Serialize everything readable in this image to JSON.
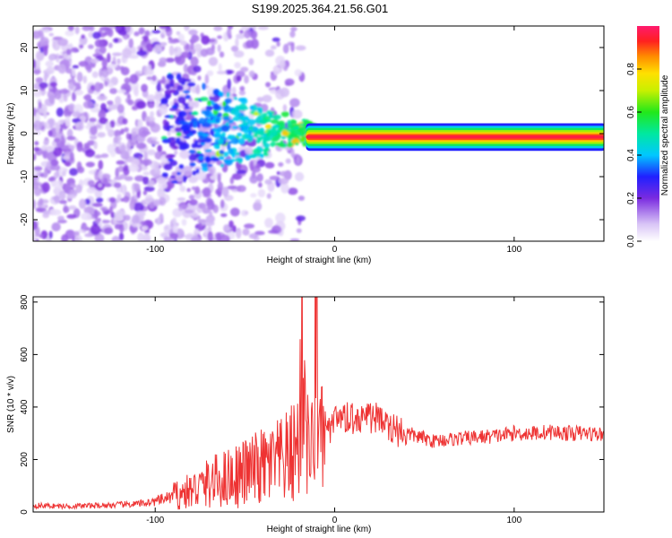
{
  "chart_data": [
    {
      "type": "heatmap",
      "title": "S199.2025.364.21.56.G01",
      "xlabel": "Height of straight line (km)",
      "ylabel": "Frequency (Hz)",
      "xlim": [
        -168,
        150
      ],
      "ylim": [
        -25,
        25
      ],
      "xticks": [
        -100,
        0,
        100
      ],
      "xtick_labels": [
        "-100",
        "0",
        "100"
      ],
      "yticks": [
        -20,
        -10,
        0,
        10,
        20
      ],
      "ytick_labels": [
        "-20",
        "-10",
        "0",
        "10",
        "20"
      ],
      "colorbar": {
        "label": "Normalized spectral amplitude",
        "range": [
          0,
          1
        ],
        "ticks": [
          0,
          0.2,
          0.4,
          0.6,
          0.8
        ],
        "tick_labels": [
          "0.0",
          "0.2",
          "0.4",
          "0.6",
          "0.8"
        ],
        "stops": [
          {
            "v": 0.0,
            "color": "#ffffff"
          },
          {
            "v": 0.08,
            "color": "#d8c4f6"
          },
          {
            "v": 0.2,
            "color": "#7a2be0"
          },
          {
            "v": 0.3,
            "color": "#2020ff"
          },
          {
            "v": 0.4,
            "color": "#00c8ff"
          },
          {
            "v": 0.5,
            "color": "#00e8a0"
          },
          {
            "v": 0.6,
            "color": "#22e81a"
          },
          {
            "v": 0.7,
            "color": "#c8f000"
          },
          {
            "v": 0.78,
            "color": "#ffe000"
          },
          {
            "v": 0.86,
            "color": "#ff8a00"
          },
          {
            "v": 0.93,
            "color": "#ff2020"
          },
          {
            "v": 1.0,
            "color": "#ff1a6e"
          }
        ]
      },
      "description_points": [
        {
          "x": -160,
          "f": 15,
          "amp": 0.15
        },
        {
          "x": -140,
          "f": 8,
          "amp": 0.18
        },
        {
          "x": -120,
          "f": -5,
          "amp": 0.17
        },
        {
          "x": -100,
          "f": 2,
          "amp": 0.2
        },
        {
          "x": -85,
          "f": 6,
          "amp": 0.25
        },
        {
          "x": -75,
          "f": -4,
          "amp": 0.35
        },
        {
          "x": -60,
          "f": 3,
          "amp": 0.45
        },
        {
          "x": -45,
          "f": -1,
          "amp": 0.4
        },
        {
          "x": -30,
          "f": 0,
          "amp": 0.5
        },
        {
          "x": -15,
          "f": -1,
          "amp": 0.7
        },
        {
          "x": -8,
          "f": 1,
          "amp": 0.85
        },
        {
          "x": 5,
          "f": -1,
          "amp": 0.9
        },
        {
          "x": 30,
          "f": -1,
          "amp": 0.95
        },
        {
          "x": 60,
          "f": -1,
          "amp": 0.95
        },
        {
          "x": 100,
          "f": -1,
          "amp": 0.96
        },
        {
          "x": 140,
          "f": -1,
          "amp": 0.95
        }
      ]
    },
    {
      "type": "line",
      "xlabel": "Height of straight line (km)",
      "ylabel": "SNR (10 * v/v)",
      "xlim": [
        -168,
        150
      ],
      "ylim": [
        0,
        820
      ],
      "xticks": [
        -100,
        0,
        100
      ],
      "xtick_labels": [
        "-100",
        "0",
        "100"
      ],
      "yticks": [
        0,
        200,
        400,
        600,
        800
      ],
      "ytick_labels": [
        "0",
        "200",
        "400",
        "600",
        "800"
      ],
      "series": [
        {
          "name": "SNR",
          "color": "#ee3333",
          "x": [
            -168,
            -150,
            -130,
            -110,
            -100,
            -90,
            -80,
            -70,
            -60,
            -50,
            -40,
            -30,
            -25,
            -20,
            -18,
            -15,
            -12,
            -10,
            -8,
            -5,
            -2,
            0,
            5,
            10,
            15,
            20,
            25,
            30,
            40,
            50,
            55,
            60,
            70,
            80,
            90,
            100,
            110,
            120,
            130,
            140,
            150
          ],
          "y": [
            25,
            22,
            25,
            30,
            40,
            60,
            80,
            110,
            130,
            150,
            170,
            190,
            210,
            260,
            700,
            250,
            230,
            820,
            240,
            300,
            330,
            350,
            360,
            370,
            375,
            370,
            360,
            330,
            300,
            280,
            270,
            275,
            280,
            285,
            290,
            300,
            300,
            305,
            300,
            300,
            295
          ]
        }
      ]
    }
  ]
}
